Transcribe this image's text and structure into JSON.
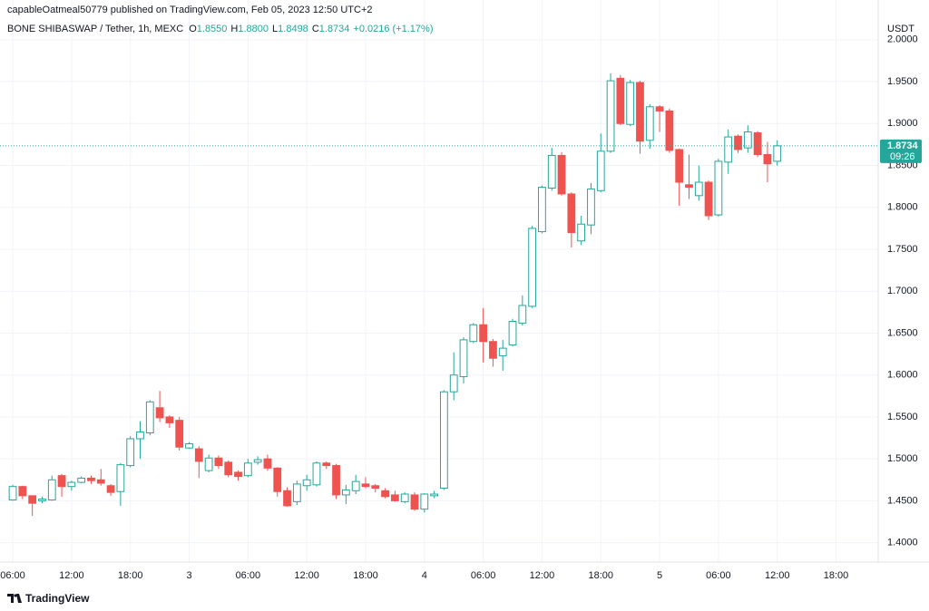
{
  "header": {
    "published": "capableOatmeal50779 published on TradingView.com, Feb 05, 2023 12:50 UTC+2",
    "symbol": "BONE SHIBASWAP / Tether, 1h, MEXC",
    "o_label": "O",
    "o": "1.8550",
    "h_label": "H",
    "h": "1.8800",
    "l_label": "L",
    "l": "1.8498",
    "c_label": "C",
    "c": "1.8734",
    "change": "+0.0216 (+1.17%)"
  },
  "logo": "TradingView",
  "chart_data": {
    "type": "candlestick",
    "y_axis_label": "USDT",
    "up_color": "#26a69a",
    "down_color": "#ef5350",
    "up_fill": "#ffffff",
    "grid": true,
    "xlim": [
      -1.3,
      88.3
    ],
    "xticks": [
      {
        "value": 0,
        "label": "06:00"
      },
      {
        "value": 6,
        "label": "12:00"
      },
      {
        "value": 12,
        "label": "18:00"
      },
      {
        "value": 18,
        "label": "3"
      },
      {
        "value": 24,
        "label": "06:00"
      },
      {
        "value": 30,
        "label": "12:00"
      },
      {
        "value": 36,
        "label": "18:00"
      },
      {
        "value": 42,
        "label": "4"
      },
      {
        "value": 48,
        "label": "06:00"
      },
      {
        "value": 54,
        "label": "12:00"
      },
      {
        "value": 60,
        "label": "18:00"
      },
      {
        "value": 66,
        "label": "5"
      },
      {
        "value": 72,
        "label": "06:00"
      },
      {
        "value": 78,
        "label": "12:00"
      },
      {
        "value": 84,
        "label": "18:00"
      }
    ],
    "ylim": [
      1.3769,
      2.0236
    ],
    "yticks": [
      {
        "value": 2.0,
        "label": "2.0000"
      },
      {
        "value": 1.95,
        "label": "1.9500"
      },
      {
        "value": 1.9,
        "label": "1.9000"
      },
      {
        "value": 1.85,
        "label": "1.8500"
      },
      {
        "value": 1.8,
        "label": "1.8000"
      },
      {
        "value": 1.75,
        "label": "1.7500"
      },
      {
        "value": 1.7,
        "label": "1.7000"
      },
      {
        "value": 1.65,
        "label": "1.6500"
      },
      {
        "value": 1.6,
        "label": "1.6000"
      },
      {
        "value": 1.55,
        "label": "1.5500"
      },
      {
        "value": 1.5,
        "label": "1.5000"
      },
      {
        "value": 1.45,
        "label": "1.4500"
      },
      {
        "value": 1.4,
        "label": "1.4000"
      }
    ],
    "price_line": {
      "value": 1.8734,
      "label": "1.8734",
      "countdown": "09:26",
      "color": "#26a69a"
    },
    "open": [
      1.451,
      1.467,
      1.456,
      1.45,
      1.451,
      1.48,
      1.467,
      1.472,
      1.477,
      1.475,
      1.468,
      1.461,
      1.492,
      1.524,
      1.531,
      1.561,
      1.55,
      1.546,
      1.513,
      1.512,
      1.486,
      1.501,
      1.496,
      1.484,
      1.48,
      1.496,
      1.5,
      1.489,
      1.462,
      1.449,
      1.468,
      1.469,
      1.495,
      1.492,
      1.457,
      1.462,
      1.47,
      1.468,
      1.462,
      1.457,
      1.449,
      1.457,
      1.44,
      1.456,
      1.465,
      1.58,
      1.598,
      1.64,
      1.66,
      1.64,
      1.623,
      1.636,
      1.662,
      1.682,
      1.771,
      1.823,
      1.862,
      1.816,
      1.76,
      1.779,
      1.82,
      1.867,
      1.954,
      1.899,
      1.949,
      1.88,
      1.92,
      1.915,
      1.869,
      1.827,
      1.814,
      1.83,
      1.791,
      1.854,
      1.885,
      1.871,
      1.889,
      1.863,
      1.855
    ],
    "high": [
      1.469,
      1.468,
      1.456,
      1.455,
      1.48,
      1.482,
      1.474,
      1.479,
      1.48,
      1.488,
      1.47,
      1.495,
      1.527,
      1.545,
      1.57,
      1.581,
      1.552,
      1.55,
      1.52,
      1.515,
      1.505,
      1.504,
      1.498,
      1.486,
      1.5,
      1.503,
      1.505,
      1.49,
      1.466,
      1.474,
      1.481,
      1.497,
      1.497,
      1.494,
      1.469,
      1.481,
      1.478,
      1.47,
      1.465,
      1.462,
      1.46,
      1.46,
      1.459,
      1.462,
      1.582,
      1.627,
      1.645,
      1.662,
      1.68,
      1.643,
      1.642,
      1.667,
      1.695,
      1.778,
      1.826,
      1.871,
      1.866,
      1.818,
      1.79,
      1.829,
      1.888,
      1.96,
      1.958,
      1.952,
      1.951,
      1.923,
      1.922,
      1.918,
      1.87,
      1.863,
      1.85,
      1.832,
      1.858,
      1.893,
      1.887,
      1.898,
      1.891,
      1.878,
      1.88
    ],
    "low": [
      1.45,
      1.452,
      1.432,
      1.447,
      1.45,
      1.455,
      1.462,
      1.471,
      1.47,
      1.468,
      1.456,
      1.444,
      1.49,
      1.5,
      1.528,
      1.544,
      1.537,
      1.51,
      1.512,
      1.477,
      1.484,
      1.488,
      1.478,
      1.474,
      1.478,
      1.493,
      1.486,
      1.455,
      1.443,
      1.445,
      1.462,
      1.467,
      1.488,
      1.452,
      1.446,
      1.458,
      1.465,
      1.46,
      1.453,
      1.449,
      1.447,
      1.438,
      1.436,
      1.453,
      1.463,
      1.57,
      1.59,
      1.638,
      1.615,
      1.61,
      1.605,
      1.634,
      1.659,
      1.68,
      1.769,
      1.82,
      1.814,
      1.752,
      1.755,
      1.768,
      1.818,
      1.865,
      1.898,
      1.897,
      1.864,
      1.87,
      1.89,
      1.865,
      1.802,
      1.81,
      1.808,
      1.785,
      1.789,
      1.84,
      1.865,
      1.865,
      1.86,
      1.83,
      1.8498
    ],
    "close": [
      1.467,
      1.456,
      1.447,
      1.452,
      1.475,
      1.467,
      1.472,
      1.477,
      1.474,
      1.471,
      1.46,
      1.493,
      1.524,
      1.532,
      1.568,
      1.549,
      1.543,
      1.514,
      1.518,
      1.497,
      1.501,
      1.492,
      1.481,
      1.479,
      1.495,
      1.499,
      1.489,
      1.461,
      1.444,
      1.47,
      1.475,
      1.495,
      1.492,
      1.457,
      1.463,
      1.473,
      1.467,
      1.465,
      1.455,
      1.45,
      1.458,
      1.44,
      1.458,
      1.458,
      1.58,
      1.6,
      1.642,
      1.66,
      1.64,
      1.62,
      1.632,
      1.664,
      1.683,
      1.775,
      1.824,
      1.862,
      1.816,
      1.77,
      1.78,
      1.822,
      1.867,
      1.951,
      1.9,
      1.949,
      1.879,
      1.92,
      1.915,
      1.868,
      1.83,
      1.824,
      1.83,
      1.79,
      1.855,
      1.884,
      1.869,
      1.89,
      1.863,
      1.852,
      1.8734
    ]
  }
}
